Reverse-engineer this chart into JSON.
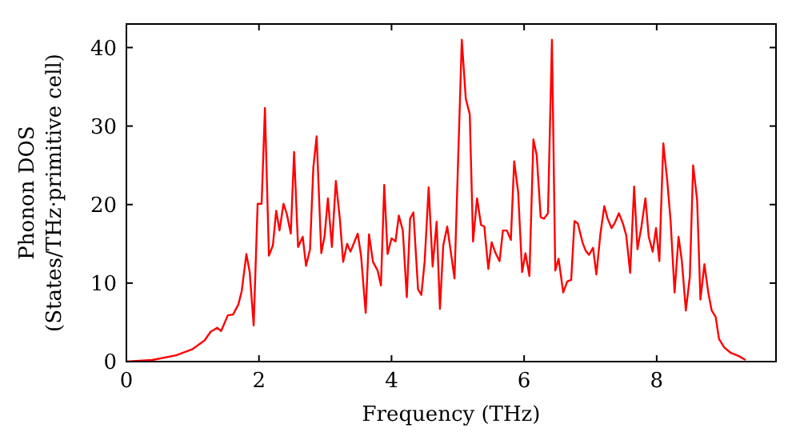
{
  "chart_data": {
    "type": "line",
    "xlabel": "Frequency (THz)",
    "ylabel": "Phonon DOS\n(States/THz·primitive cell)",
    "xlim": [
      0,
      9.8
    ],
    "ylim": [
      0,
      43
    ],
    "xticks": [
      0,
      2,
      4,
      6,
      8
    ],
    "yticks": [
      0,
      10,
      20,
      30,
      40
    ],
    "grid": false,
    "line_style": "solid",
    "series": [
      {
        "color": "#ff0000",
        "x": [
          0,
          0.39,
          0.75,
          1.0,
          1.18,
          1.27,
          1.37,
          1.43,
          1.53,
          1.61,
          1.69,
          1.74,
          1.81,
          1.86,
          1.92,
          1.98,
          2.04,
          2.09,
          2.15,
          2.21,
          2.26,
          2.31,
          2.37,
          2.42,
          2.48,
          2.53,
          2.59,
          2.66,
          2.71,
          2.77,
          2.82,
          2.87,
          2.94,
          2.99,
          3.04,
          3.1,
          3.16,
          3.22,
          3.27,
          3.33,
          3.38,
          3.49,
          3.54,
          3.61,
          3.66,
          3.72,
          3.79,
          3.84,
          3.89,
          3.94,
          4.0,
          4.06,
          4.11,
          4.17,
          4.23,
          4.28,
          4.33,
          4.4,
          4.45,
          4.5,
          4.56,
          4.62,
          4.68,
          4.73,
          4.78,
          4.84,
          4.9,
          4.95,
          5.06,
          5.12,
          5.18,
          5.23,
          5.29,
          5.35,
          5.4,
          5.46,
          5.51,
          5.57,
          5.63,
          5.68,
          5.74,
          5.8,
          5.85,
          5.91,
          5.97,
          6.02,
          6.08,
          6.14,
          6.19,
          6.25,
          6.3,
          6.36,
          6.42,
          6.47,
          6.52,
          6.59,
          6.65,
          6.71,
          6.76,
          6.81,
          6.88,
          6.93,
          6.98,
          7.04,
          7.09,
          7.15,
          7.21,
          7.26,
          7.32,
          7.37,
          7.43,
          7.49,
          7.54,
          7.6,
          7.66,
          7.71,
          7.77,
          7.83,
          7.88,
          7.94,
          7.99,
          8.04,
          8.1,
          8.16,
          8.21,
          8.27,
          8.33,
          8.38,
          8.44,
          8.5,
          8.55,
          8.61,
          8.66,
          8.72,
          8.78,
          8.83,
          8.89,
          8.94,
          9.02,
          9.12,
          9.24,
          9.34
        ],
        "values": [
          0,
          0.2,
          0.8,
          1.6,
          2.7,
          3.8,
          4.3,
          3.9,
          5.9,
          6.0,
          7.3,
          9.0,
          13.7,
          11.4,
          4.6,
          20.1,
          20.1,
          32.3,
          13.5,
          14.8,
          19.2,
          16.7,
          20.1,
          18.8,
          16.3,
          26.7,
          14.6,
          15.9,
          12.2,
          14.3,
          24.7,
          28.7,
          13.8,
          16.0,
          20.8,
          14.6,
          23.0,
          18.2,
          12.7,
          15.0,
          14.0,
          16.3,
          13.5,
          6.2,
          16.2,
          12.7,
          11.6,
          9.7,
          22.5,
          13.7,
          15.7,
          15.3,
          18.6,
          16.7,
          8.2,
          18.2,
          19.0,
          9.2,
          8.5,
          12.8,
          22.2,
          12.1,
          17.8,
          6.7,
          14.8,
          17.2,
          13.6,
          10.6,
          41.0,
          33.5,
          31.5,
          15.3,
          20.8,
          17.4,
          17.2,
          11.8,
          15.2,
          13.8,
          12.8,
          16.7,
          16.7,
          15.5,
          25.5,
          21.6,
          11.4,
          13.8,
          10.9,
          28.3,
          26.3,
          18.4,
          18.2,
          18.9,
          41.0,
          11.6,
          13.1,
          8.8,
          10.2,
          10.4,
          17.9,
          17.6,
          15.2,
          14.1,
          13.6,
          14.5,
          11.1,
          16.2,
          19.8,
          18.2,
          17.0,
          17.7,
          18.9,
          17.6,
          16.1,
          11.3,
          22.3,
          14.3,
          17.2,
          20.8,
          15.9,
          14.0,
          17.0,
          12.8,
          27.8,
          23.0,
          17.9,
          8.8,
          15.9,
          12.8,
          6.5,
          10.8,
          25.0,
          20.6,
          7.9,
          12.4,
          8.7,
          6.5,
          5.7,
          2.9,
          1.8,
          1.1,
          0.7,
          0.2
        ]
      }
    ]
  }
}
